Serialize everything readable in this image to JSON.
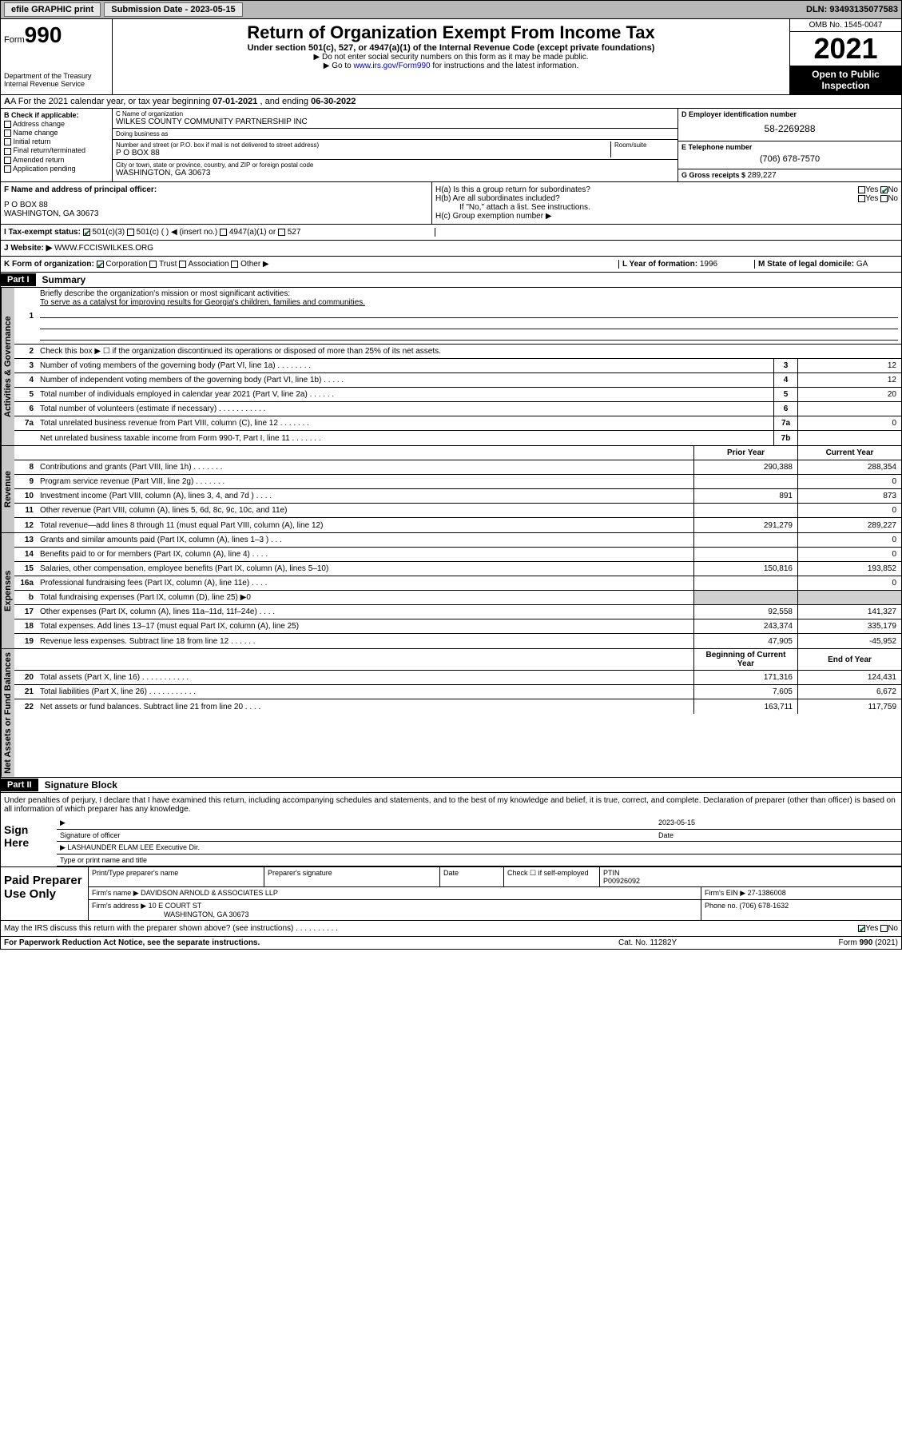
{
  "topbar": {
    "efile": "efile GRAPHIC print",
    "subdate_lbl": "Submission Date - ",
    "subdate": "2023-05-15",
    "dln": "DLN: 93493135077583"
  },
  "header": {
    "form_prefix": "Form",
    "form_num": "990",
    "dept": "Department of the Treasury\nInternal Revenue Service",
    "title": "Return of Organization Exempt From Income Tax",
    "subtitle": "Under section 501(c), 527, or 4947(a)(1) of the Internal Revenue Code (except private foundations)",
    "note1": "▶ Do not enter social security numbers on this form as it may be made public.",
    "note2_pre": "▶ Go to ",
    "note2_link": "www.irs.gov/Form990",
    "note2_post": " for instructions and the latest information.",
    "omb": "OMB No. 1545-0047",
    "year": "2021",
    "inspect": "Open to Public Inspection"
  },
  "rowA": {
    "text_pre": "A For the 2021 calendar year, or tax year beginning ",
    "begin": "07-01-2021",
    "mid": " , and ending ",
    "end": "06-30-2022"
  },
  "colB": {
    "hdr": "B Check if applicable:",
    "items": [
      "Address change",
      "Name change",
      "Initial return",
      "Final return/terminated",
      "Amended return",
      "Application pending"
    ]
  },
  "colC": {
    "name_lbl": "C Name of organization",
    "name": "WILKES COUNTY COMMUNITY PARTNERSHIP INC",
    "dba_lbl": "Doing business as",
    "dba": "",
    "street_lbl": "Number and street (or P.O. box if mail is not delivered to street address)",
    "room_lbl": "Room/suite",
    "street": "P O BOX 88",
    "city_lbl": "City or town, state or province, country, and ZIP or foreign postal code",
    "city": "WASHINGTON, GA  30673"
  },
  "colD": {
    "ein_lbl": "D Employer identification number",
    "ein": "58-2269288",
    "phone_lbl": "E Telephone number",
    "phone": "(706) 678-7570",
    "gross_lbl": "G Gross receipts $ ",
    "gross": "289,227"
  },
  "secF": {
    "lbl": "F Name and address of principal officer:",
    "addr1": "P O BOX 88",
    "addr2": "WASHINGTON, GA  30673"
  },
  "secH": {
    "ha": "H(a)  Is this a group return for subordinates?",
    "hb": "H(b)  Are all subordinates included?",
    "hb_note": "If \"No,\" attach a list. See instructions.",
    "hc": "H(c)  Group exemption number ▶",
    "yes": "Yes",
    "no": "No"
  },
  "rowI": {
    "lbl": "I    Tax-exempt status:",
    "opts": [
      "501(c)(3)",
      "501(c) (  ) ◀ (insert no.)",
      "4947(a)(1) or",
      "527"
    ]
  },
  "rowJ": {
    "lbl": "J    Website: ▶",
    "val": "WWW.FCCISWILKES.ORG"
  },
  "rowK": {
    "lbl": "K Form of organization:",
    "opts": [
      "Corporation",
      "Trust",
      "Association",
      "Other ▶"
    ],
    "l_lbl": "L Year of formation: ",
    "l_val": "1996",
    "m_lbl": "M State of legal domicile: ",
    "m_val": "GA"
  },
  "part1": {
    "hdr": "Part I",
    "title": "Summary",
    "q1": "Briefly describe the organization's mission or most significant activities:",
    "mission": "To serve as a catalyst for improving results for Georgia's children, families and communities.",
    "q2": "Check this box ▶ ☐ if the organization discontinued its operations or disposed of more than 25% of its net assets.",
    "vtab1": "Activities & Governance",
    "vtab2": "Revenue",
    "vtab3": "Expenses",
    "vtab4": "Net Assets or Fund Balances",
    "rows_gov": [
      {
        "n": "3",
        "d": "Number of voting members of the governing body (Part VI, line 1a)  .    .    .    .    .    .    .    .",
        "b": "3",
        "v": "12"
      },
      {
        "n": "4",
        "d": "Number of independent voting members of the governing body (Part VI, line 1b)   .    .    .    .    .",
        "b": "4",
        "v": "12"
      },
      {
        "n": "5",
        "d": "Total number of individuals employed in calendar year 2021 (Part V, line 2a)   .    .    .    .    .    .",
        "b": "5",
        "v": "20"
      },
      {
        "n": "6",
        "d": "Total number of volunteers (estimate if necessary)   .    .    .    .    .    .    .    .    .    .    .",
        "b": "6",
        "v": ""
      },
      {
        "n": "7a",
        "d": "Total unrelated business revenue from Part VIII, column (C), line 12   .    .    .    .    .    .    .",
        "b": "7a",
        "v": "0"
      },
      {
        "n": "",
        "d": "Net unrelated business taxable income from Form 990-T, Part I, line 11   .    .    .    .    .    .    .",
        "b": "7b",
        "v": ""
      }
    ],
    "col_prior": "Prior Year",
    "col_curr": "Current Year",
    "rows_rev": [
      {
        "n": "8",
        "d": "Contributions and grants (Part VIII, line 1h)   .    .    .    .    .    .    .",
        "p": "290,388",
        "c": "288,354"
      },
      {
        "n": "9",
        "d": "Program service revenue (Part VIII, line 2g)   .    .    .    .    .    .    .",
        "p": "",
        "c": "0"
      },
      {
        "n": "10",
        "d": "Investment income (Part VIII, column (A), lines 3, 4, and 7d )   .    .    .    .",
        "p": "891",
        "c": "873"
      },
      {
        "n": "11",
        "d": "Other revenue (Part VIII, column (A), lines 5, 6d, 8c, 9c, 10c, and 11e)",
        "p": "",
        "c": "0"
      },
      {
        "n": "12",
        "d": "Total revenue—add lines 8 through 11 (must equal Part VIII, column (A), line 12)",
        "p": "291,279",
        "c": "289,227"
      }
    ],
    "rows_exp": [
      {
        "n": "13",
        "d": "Grants and similar amounts paid (Part IX, column (A), lines 1–3 )   .    .    .",
        "p": "",
        "c": "0"
      },
      {
        "n": "14",
        "d": "Benefits paid to or for members (Part IX, column (A), line 4)   .    .    .    .",
        "p": "",
        "c": "0"
      },
      {
        "n": "15",
        "d": "Salaries, other compensation, employee benefits (Part IX, column (A), lines 5–10)",
        "p": "150,816",
        "c": "193,852"
      },
      {
        "n": "16a",
        "d": "Professional fundraising fees (Part IX, column (A), line 11e)   .    .    .    .",
        "p": "",
        "c": "0"
      },
      {
        "n": "b",
        "d": "Total fundraising expenses (Part IX, column (D), line 25) ▶0",
        "p": "grey",
        "c": "grey"
      },
      {
        "n": "17",
        "d": "Other expenses (Part IX, column (A), lines 11a–11d, 11f–24e)   .    .    .    .",
        "p": "92,558",
        "c": "141,327"
      },
      {
        "n": "18",
        "d": "Total expenses. Add lines 13–17 (must equal Part IX, column (A), line 25)",
        "p": "243,374",
        "c": "335,179"
      },
      {
        "n": "19",
        "d": "Revenue less expenses. Subtract line 18 from line 12   .    .    .    .    .    .",
        "p": "47,905",
        "c": "-45,952"
      }
    ],
    "col_begin": "Beginning of Current Year",
    "col_end": "End of Year",
    "rows_net": [
      {
        "n": "20",
        "d": "Total assets (Part X, line 16)   .    .    .    .    .    .    .    .    .    .    .",
        "p": "171,316",
        "c": "124,431"
      },
      {
        "n": "21",
        "d": "Total liabilities (Part X, line 26)   .    .    .    .    .    .    .    .    .    .    .",
        "p": "7,605",
        "c": "6,672"
      },
      {
        "n": "22",
        "d": "Net assets or fund balances. Subtract line 21 from line 20   .    .    .    .",
        "p": "163,711",
        "c": "117,759"
      }
    ]
  },
  "part2": {
    "hdr": "Part II",
    "title": "Signature Block",
    "decl": "Under penalties of perjury, I declare that I have examined this return, including accompanying schedules and statements, and to the best of my knowledge and belief, it is true, correct, and complete. Declaration of preparer (other than officer) is based on all information of which preparer has any knowledge.",
    "sign_here": "Sign Here",
    "sig_officer": "Signature of officer",
    "sig_date": "Date",
    "sig_date_val": "2023-05-15",
    "sig_name": "LASHAUNDER ELAM LEE  Executive Dir.",
    "sig_name_lbl": "Type or print name and title",
    "paid": "Paid Preparer Use Only",
    "prep_name_lbl": "Print/Type preparer's name",
    "prep_sig_lbl": "Preparer's signature",
    "prep_date_lbl": "Date",
    "prep_check": "Check ☐ if self-employed",
    "ptin_lbl": "PTIN",
    "ptin": "P00926092",
    "firm_name_lbl": "Firm's name    ▶",
    "firm_name": "DAVIDSON ARNOLD & ASSOCIATES LLP",
    "firm_ein_lbl": "Firm's EIN ▶",
    "firm_ein": "27-1386008",
    "firm_addr_lbl": "Firm's address ▶",
    "firm_addr1": "10 E COURT ST",
    "firm_addr2": "WASHINGTON, GA  30673",
    "firm_phone_lbl": "Phone no. ",
    "firm_phone": "(706) 678-1632",
    "may_irs": "May the IRS discuss this return with the preparer shown above? (see instructions)   .    .    .    .    .    .    .    .    .    .",
    "may_yes": "Yes",
    "may_no": "No"
  },
  "footer": {
    "pra": "For Paperwork Reduction Act Notice, see the separate instructions.",
    "cat": "Cat. No. 11282Y",
    "form": "Form 990 (2021)"
  }
}
